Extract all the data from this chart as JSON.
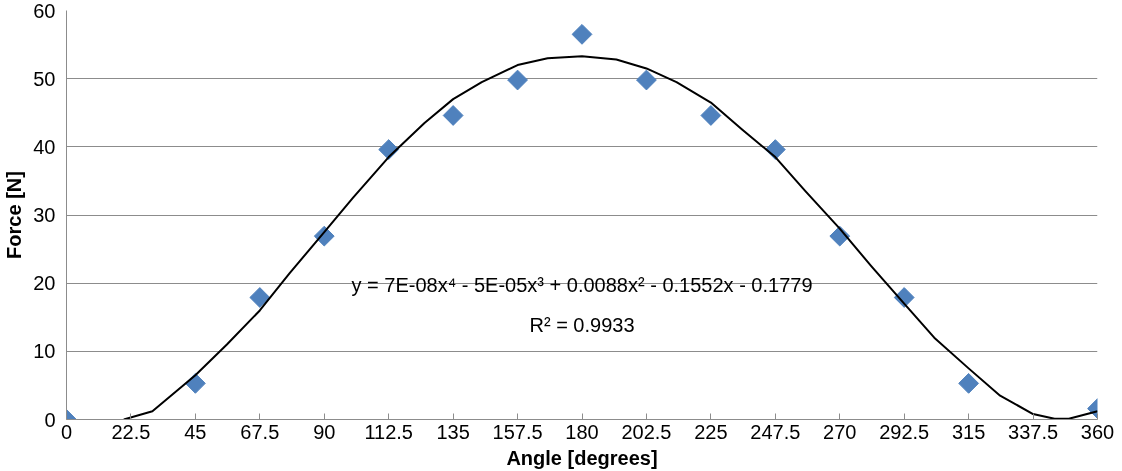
{
  "chart_data": {
    "type": "scatter",
    "xlabel": "Angle [degrees]",
    "ylabel": "Force [N]",
    "marker": "diamond",
    "grid": "y",
    "xlim": [
      0,
      360
    ],
    "ylim": [
      0,
      60
    ],
    "xticks": [
      0,
      22.5,
      45,
      67.5,
      90,
      112.5,
      135,
      157.5,
      180,
      202.5,
      225,
      247.5,
      270,
      292.5,
      315,
      337.5,
      360
    ],
    "yticks": [
      0,
      10,
      20,
      30,
      40,
      50,
      60
    ],
    "series": [
      {
        "color": "#4f81bd",
        "x": [
          0,
          45,
          67.5,
          90,
          112.5,
          135,
          157.5,
          180,
          202.5,
          225,
          247.5,
          270,
          292.5,
          315,
          360
        ],
        "values": [
          0,
          5.3,
          17.9,
          26.9,
          39.6,
          44.6,
          49.8,
          56.5,
          49.8,
          44.6,
          39.6,
          26.9,
          17.9,
          5.3,
          1.6
        ]
      },
      {
        "type": "line",
        "marker": "none",
        "color": "#000000",
        "x": [
          20,
          30,
          45,
          56,
          67.5,
          78,
          90,
          100,
          112.5,
          125,
          135,
          145,
          157.5,
          168,
          180,
          192,
          202.5,
          213,
          225,
          236,
          247.5,
          258,
          270,
          281,
          292.5,
          303,
          315,
          326,
          337.5,
          345,
          350,
          360
        ],
        "values": [
          0,
          1.2,
          6.5,
          11,
          16,
          21.5,
          27.5,
          32.5,
          38.5,
          43.5,
          47,
          49.5,
          52,
          53,
          53.3,
          52.8,
          51.5,
          49.5,
          46.5,
          42.5,
          38.5,
          33.5,
          28,
          22.5,
          17,
          12,
          7.5,
          3.5,
          0.8,
          0.1,
          0.1,
          1.2
        ]
      }
    ],
    "annotations": [
      "y = 7E-08x⁴ - 5E-05x³ + 0.0088x² - 0.1552x - 0.1779",
      "R² = 0.9933"
    ]
  }
}
